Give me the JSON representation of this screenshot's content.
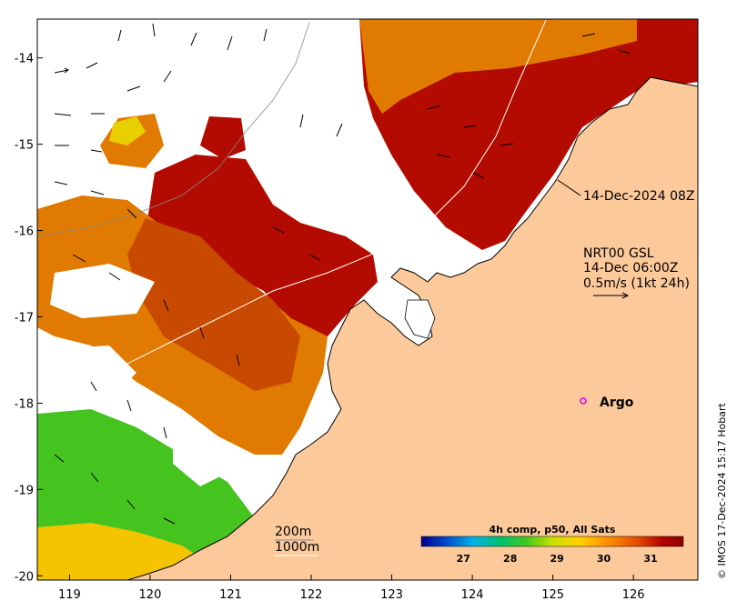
{
  "map": {
    "lon_ticks": [
      "119",
      "120",
      "121",
      "122",
      "123",
      "124",
      "125",
      "126"
    ],
    "lat_ticks": [
      "-14",
      "-15",
      "-16",
      "-17",
      "-18",
      "-19",
      "-20"
    ],
    "lon_range": [
      118.6,
      126.8
    ],
    "lat_range": [
      -20.05,
      -13.55
    ],
    "colors": {
      "land": "#fcc99b",
      "ocean_blank": "#ffffff",
      "hot": "#b30b00",
      "mid": "#e07a00",
      "warm": "#f4c400",
      "cool": "#45c31f"
    }
  },
  "annotations": {
    "pass_time": "14-Dec-2024 08Z",
    "current_source": "NRT00 GSL",
    "current_time": "14-Dec 06:00Z",
    "current_scale": "0.5m/s (1kt 24h)",
    "argo_label": "Argo",
    "isobath_200": "200m",
    "isobath_1000": "1000m"
  },
  "colorbar": {
    "title": "4h comp, p50, All Sats",
    "ticks": [
      "27",
      "28",
      "29",
      "30",
      "31"
    ],
    "colors": [
      "#00008b",
      "#0050d0",
      "#00b4e8",
      "#00c070",
      "#40c820",
      "#c8e000",
      "#ffd400",
      "#ff9400",
      "#e85000",
      "#b40000",
      "#8b0000"
    ]
  },
  "credit": "© IMOS 17-Dec-2024 15:17 Hobart"
}
